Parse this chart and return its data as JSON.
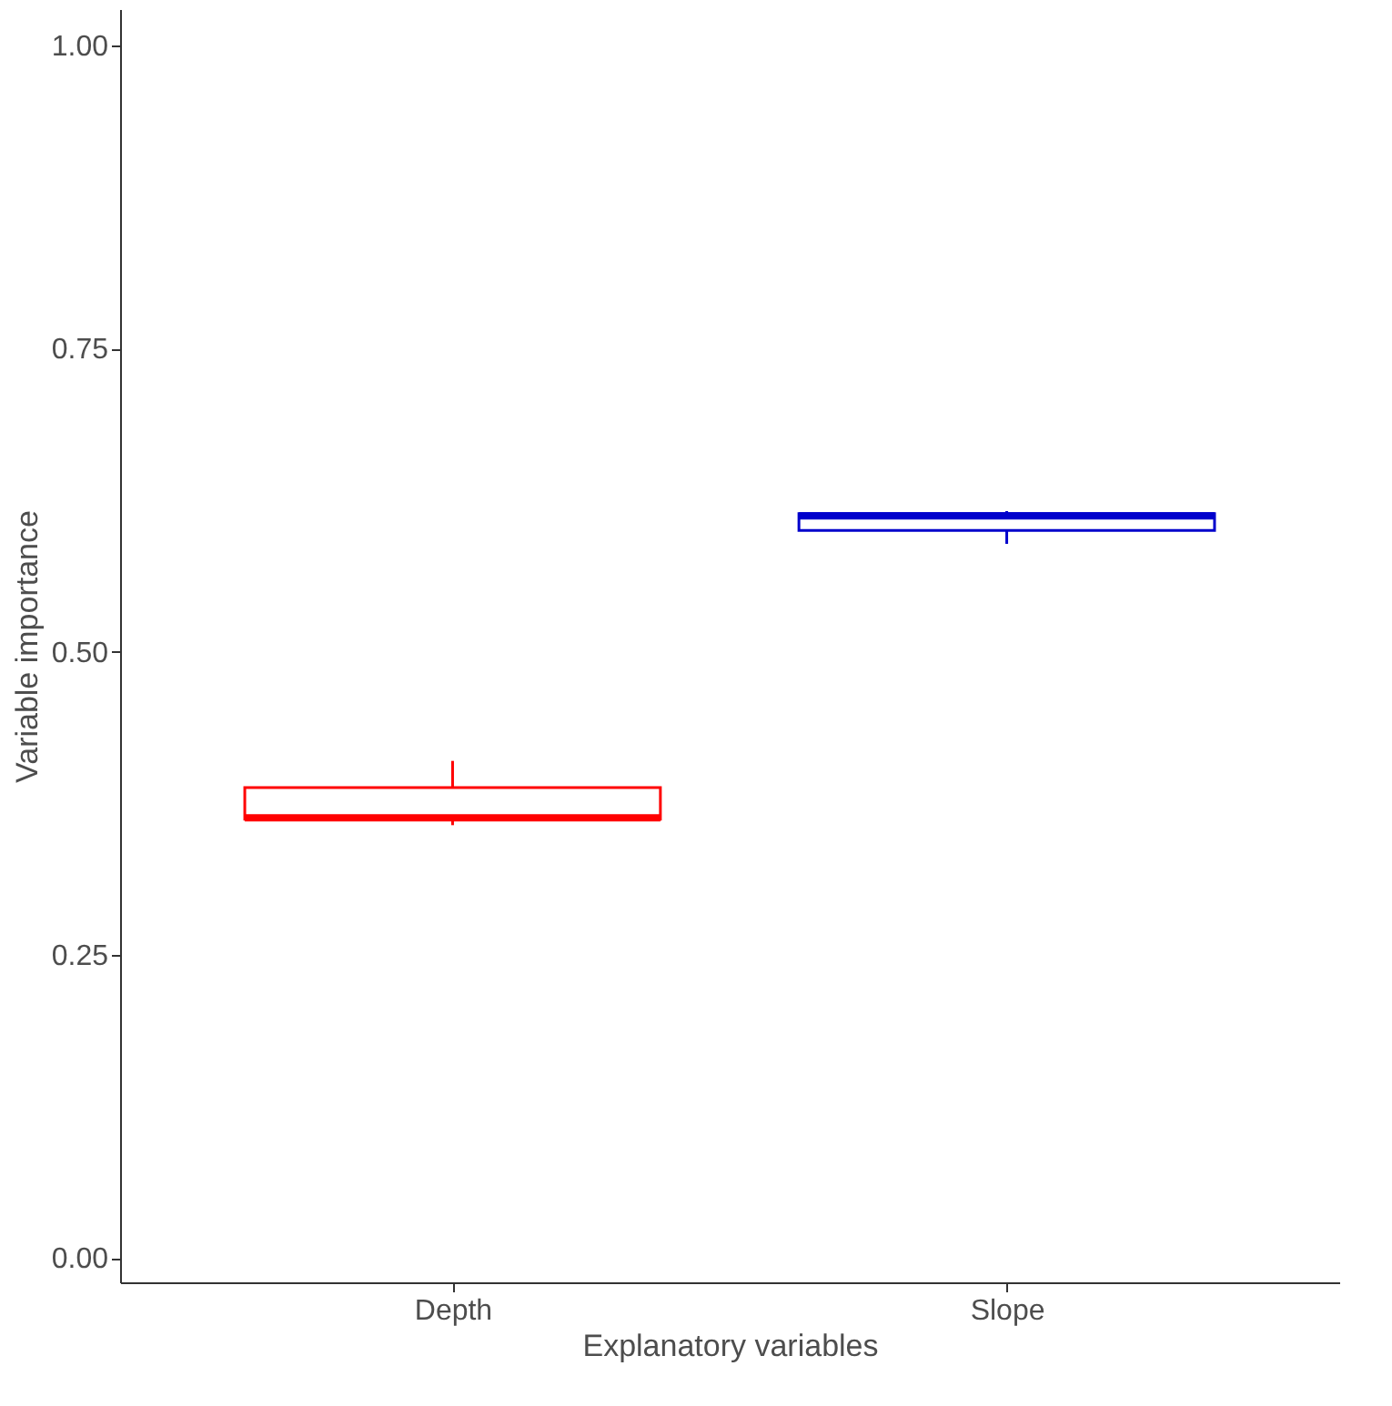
{
  "chart_data": {
    "type": "box",
    "xlabel": "Explanatory variables",
    "ylabel": "Variable importance",
    "categories": [
      "Depth",
      "Slope"
    ],
    "colors": [
      "#ff0000",
      "#0000cc"
    ],
    "boxes": [
      {
        "low": 0.357,
        "q1": 0.362,
        "median": 0.363,
        "q3": 0.388,
        "high": 0.41
      },
      {
        "low": 0.589,
        "q1": 0.6,
        "median": 0.612,
        "q3": 0.614,
        "high": 0.616
      }
    ],
    "ylim": [
      -0.02,
      1.03
    ],
    "yticks": [
      {
        "value": 0,
        "label": "0.00"
      },
      {
        "value": 0.25,
        "label": "0.25"
      },
      {
        "value": 0.5,
        "label": "0.50"
      },
      {
        "value": 0.75,
        "label": "0.75"
      },
      {
        "value": 1,
        "label": "1.00"
      }
    ],
    "grid": false
  }
}
